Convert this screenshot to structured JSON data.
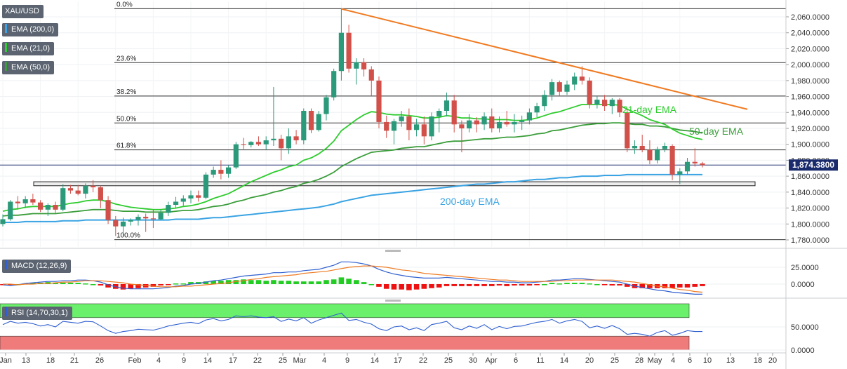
{
  "chart_data": {
    "type": "candlestick",
    "symbol": "XAU/USD",
    "ylim": [
      1775,
      2075
    ],
    "y_ticks": [
      1780,
      1800,
      1820,
      1840,
      1860,
      1880,
      1900,
      1920,
      1940,
      1960,
      1980,
      2000,
      2020,
      2040,
      2060
    ],
    "x_ticks": [
      "Jan",
      "13",
      "18",
      "21",
      "26",
      "Feb",
      "4",
      "9",
      "14",
      "17",
      "22",
      "25",
      "Mar",
      "4",
      "9",
      "14",
      "17",
      "22",
      "25",
      "30",
      "Apr",
      "6",
      "11",
      "14",
      "20",
      "25",
      "28",
      "May",
      "4",
      "6",
      "10",
      "13",
      "18",
      "20"
    ],
    "last_price": "1,874.3800",
    "fib_levels": [
      {
        "label": "0.0%",
        "value": 2070.2
      },
      {
        "label": "23.6%",
        "value": 2002.5
      },
      {
        "label": "38.2%",
        "value": 1960.6
      },
      {
        "label": "50.0%",
        "value": 1926.8
      },
      {
        "label": "61.8%",
        "value": 1893.0
      },
      {
        "label": "100.0%",
        "value": 1780.3
      }
    ],
    "indicators": [
      "EMA (200,0)",
      "EMA (21,0)",
      "EMA (50,0)"
    ],
    "annotations": [
      "21-day EMA",
      "50-day EMA",
      "200-day EMA"
    ],
    "ohlc": [
      [
        1800,
        1812,
        1797,
        1806
      ],
      [
        1806,
        1830,
        1804,
        1828
      ],
      [
        1828,
        1835,
        1819,
        1826
      ],
      [
        1826,
        1835,
        1820,
        1831
      ],
      [
        1831,
        1838,
        1824,
        1827
      ],
      [
        1827,
        1830,
        1815,
        1818
      ],
      [
        1818,
        1826,
        1810,
        1824
      ],
      [
        1824,
        1828,
        1814,
        1818
      ],
      [
        1818,
        1850,
        1816,
        1845
      ],
      [
        1845,
        1849,
        1838,
        1842
      ],
      [
        1842,
        1849,
        1836,
        1838
      ],
      [
        1838,
        1851,
        1832,
        1848
      ],
      [
        1848,
        1855,
        1840,
        1846
      ],
      [
        1846,
        1848,
        1820,
        1830
      ],
      [
        1830,
        1835,
        1800,
        1805
      ],
      [
        1805,
        1810,
        1785,
        1797
      ],
      [
        1797,
        1808,
        1785,
        1803
      ],
      [
        1803,
        1807,
        1798,
        1805
      ],
      [
        1805,
        1812,
        1798,
        1809
      ],
      [
        1809,
        1813,
        1790,
        1807
      ],
      [
        1807,
        1818,
        1795,
        1806
      ],
      [
        1806,
        1818,
        1805,
        1814
      ],
      [
        1814,
        1828,
        1810,
        1824
      ],
      [
        1824,
        1834,
        1820,
        1828
      ],
      [
        1828,
        1836,
        1823,
        1832
      ],
      [
        1832,
        1842,
        1826,
        1836
      ],
      [
        1836,
        1842,
        1828,
        1833
      ],
      [
        1833,
        1865,
        1831,
        1862
      ],
      [
        1862,
        1872,
        1858,
        1868
      ],
      [
        1868,
        1880,
        1856,
        1863
      ],
      [
        1863,
        1874,
        1858,
        1871
      ],
      [
        1871,
        1903,
        1869,
        1900
      ],
      [
        1900,
        1908,
        1894,
        1899
      ],
      [
        1899,
        1904,
        1896,
        1903
      ],
      [
        1903,
        1910,
        1898,
        1900
      ],
      [
        1900,
        1910,
        1893,
        1905
      ],
      [
        1905,
        1972,
        1898,
        1907
      ],
      [
        1907,
        1912,
        1880,
        1895
      ],
      [
        1895,
        1920,
        1888,
        1910
      ],
      [
        1910,
        1918,
        1900,
        1905
      ],
      [
        1905,
        1945,
        1900,
        1942
      ],
      [
        1942,
        1945,
        1914,
        1918
      ],
      [
        1918,
        1942,
        1916,
        1938
      ],
      [
        1938,
        1962,
        1930,
        1959
      ],
      [
        1959,
        1995,
        1955,
        1992
      ],
      [
        1992,
        2070,
        1980,
        2040
      ],
      [
        2040,
        2050,
        1990,
        1995
      ],
      [
        1995,
        2008,
        1975,
        2003
      ],
      [
        2003,
        2008,
        1985,
        1994
      ],
      [
        1994,
        1998,
        1960,
        1980
      ],
      [
        1980,
        1985,
        1920,
        1928
      ],
      [
        1928,
        1936,
        1908,
        1917
      ],
      [
        1917,
        1932,
        1900,
        1929
      ],
      [
        1929,
        1942,
        1922,
        1935
      ],
      [
        1935,
        1945,
        1905,
        1918
      ],
      [
        1918,
        1932,
        1910,
        1925
      ],
      [
        1925,
        1935,
        1900,
        1910
      ],
      [
        1910,
        1940,
        1905,
        1935
      ],
      [
        1935,
        1945,
        1915,
        1942
      ],
      [
        1942,
        1965,
        1935,
        1955
      ],
      [
        1955,
        1962,
        1915,
        1925
      ],
      [
        1925,
        1930,
        1890,
        1920
      ],
      [
        1920,
        1938,
        1915,
        1930
      ],
      [
        1930,
        1934,
        1915,
        1925
      ],
      [
        1925,
        1940,
        1918,
        1935
      ],
      [
        1935,
        1945,
        1915,
        1920
      ],
      [
        1920,
        1935,
        1915,
        1928
      ],
      [
        1928,
        1942,
        1922,
        1925
      ],
      [
        1925,
        1938,
        1915,
        1928
      ],
      [
        1928,
        1936,
        1918,
        1930
      ],
      [
        1930,
        1945,
        1925,
        1940
      ],
      [
        1940,
        1952,
        1934,
        1948
      ],
      [
        1948,
        1968,
        1942,
        1962
      ],
      [
        1962,
        1982,
        1955,
        1978
      ],
      [
        1978,
        1980,
        1960,
        1966
      ],
      [
        1966,
        1980,
        1962,
        1975
      ],
      [
        1975,
        1990,
        1968,
        1985
      ],
      [
        1985,
        1998,
        1975,
        1980
      ],
      [
        1980,
        1984,
        1945,
        1950
      ],
      [
        1950,
        1960,
        1945,
        1956
      ],
      [
        1956,
        1962,
        1942,
        1948
      ],
      [
        1948,
        1958,
        1938,
        1956
      ],
      [
        1956,
        1958,
        1934,
        1940
      ],
      [
        1940,
        1945,
        1890,
        1895
      ],
      [
        1895,
        1905,
        1888,
        1898
      ],
      [
        1898,
        1912,
        1890,
        1893
      ],
      [
        1893,
        1905,
        1875,
        1880
      ],
      [
        1880,
        1897,
        1876,
        1894
      ],
      [
        1894,
        1902,
        1890,
        1898
      ],
      [
        1898,
        1900,
        1855,
        1862
      ],
      [
        1862,
        1870,
        1850,
        1866
      ],
      [
        1866,
        1883,
        1862,
        1878
      ],
      [
        1878,
        1895,
        1872,
        1876
      ],
      [
        1876,
        1878,
        1871,
        1874
      ]
    ],
    "ema21": [
      1816,
      1818,
      1819,
      1821,
      1822,
      1822,
      1822,
      1822,
      1824,
      1826,
      1827,
      1829,
      1830,
      1830,
      1828,
      1825,
      1823,
      1821,
      1820,
      1819,
      1818,
      1818,
      1819,
      1820,
      1822,
      1823,
      1825,
      1828,
      1832,
      1835,
      1838,
      1843,
      1848,
      1853,
      1857,
      1861,
      1865,
      1868,
      1872,
      1874,
      1880,
      1883,
      1888,
      1895,
      1904,
      1917,
      1924,
      1931,
      1937,
      1941,
      1940,
      1938,
      1937,
      1937,
      1936,
      1935,
      1933,
      1933,
      1934,
      1936,
      1935,
      1933,
      1933,
      1932,
      1932,
      1931,
      1931,
      1931,
      1930,
      1930,
      1931,
      1933,
      1936,
      1939,
      1941,
      1944,
      1947,
      1950,
      1950,
      1950,
      1950,
      1950,
      1949,
      1944,
      1940,
      1936,
      1931,
      1928,
      1925,
      1919,
      1914,
      1911,
      1908,
      1906
    ],
    "ema50": [
      1810,
      1811,
      1811,
      1812,
      1813,
      1813,
      1813,
      1813,
      1814,
      1815,
      1816,
      1817,
      1818,
      1818,
      1818,
      1817,
      1816,
      1816,
      1816,
      1815,
      1815,
      1815,
      1815,
      1816,
      1817,
      1817,
      1818,
      1820,
      1822,
      1823,
      1825,
      1828,
      1830,
      1833,
      1835,
      1837,
      1840,
      1842,
      1845,
      1847,
      1851,
      1853,
      1856,
      1860,
      1865,
      1872,
      1877,
      1882,
      1886,
      1890,
      1891,
      1892,
      1893,
      1895,
      1896,
      1897,
      1897,
      1899,
      1901,
      1903,
      1904,
      1904,
      1905,
      1906,
      1907,
      1907,
      1908,
      1909,
      1909,
      1910,
      1911,
      1913,
      1914,
      1917,
      1918,
      1920,
      1922,
      1924,
      1925,
      1926,
      1926,
      1927,
      1927,
      1926,
      1925,
      1925,
      1923,
      1923,
      1922,
      1920,
      1918,
      1917,
      1916,
      1914
    ],
    "ema200": [
      1802,
      1802,
      1802,
      1803,
      1803,
      1803,
      1803,
      1803,
      1804,
      1804,
      1804,
      1805,
      1805,
      1805,
      1805,
      1805,
      1805,
      1805,
      1805,
      1805,
      1805,
      1805,
      1805,
      1806,
      1806,
      1806,
      1806,
      1807,
      1808,
      1808,
      1809,
      1810,
      1811,
      1812,
      1813,
      1814,
      1815,
      1816,
      1817,
      1818,
      1819,
      1820,
      1821,
      1823,
      1825,
      1828,
      1830,
      1832,
      1834,
      1836,
      1837,
      1838,
      1839,
      1840,
      1841,
      1842,
      1843,
      1844,
      1845,
      1846,
      1847,
      1848,
      1849,
      1850,
      1850,
      1851,
      1852,
      1853,
      1853,
      1854,
      1855,
      1856,
      1856,
      1857,
      1858,
      1858,
      1859,
      1860,
      1860,
      1860,
      1861,
      1861,
      1861,
      1862,
      1862,
      1862,
      1862,
      1862,
      1862,
      1862,
      1862,
      1862,
      1862,
      1862
    ],
    "macd": {
      "label": "MACD (12,26,9)",
      "ylim": [
        -18,
        33
      ],
      "y_ticks": [
        0,
        25
      ],
      "macd": [
        -1,
        -2,
        -1,
        1,
        2,
        3,
        4,
        4,
        5,
        5,
        6,
        6,
        5,
        3,
        -1,
        -4,
        -6,
        -7,
        -7,
        -7,
        -7,
        -6,
        -5,
        -3,
        -2,
        0,
        1,
        3,
        5,
        6,
        8,
        10,
        12,
        13,
        14,
        15,
        17,
        17,
        18,
        18,
        20,
        21,
        22,
        25,
        28,
        33,
        33,
        32,
        30,
        27,
        22,
        18,
        15,
        13,
        11,
        10,
        9,
        9,
        9,
        10,
        9,
        8,
        7,
        6,
        5,
        4,
        4,
        3,
        3,
        2,
        2,
        3,
        4,
        6,
        6,
        7,
        8,
        8,
        7,
        6,
        5,
        4,
        3,
        0,
        -3,
        -5,
        -7,
        -9,
        -10,
        -12,
        -13,
        -14,
        -15,
        -15
      ],
      "signal": [
        0,
        0,
        -1,
        0,
        0,
        1,
        1,
        2,
        3,
        3,
        4,
        5,
        5,
        5,
        4,
        3,
        2,
        0,
        -1,
        -2,
        -3,
        -4,
        -4,
        -4,
        -3,
        -3,
        -2,
        -1,
        0,
        1,
        2,
        4,
        5,
        7,
        8,
        10,
        11,
        12,
        13,
        14,
        16,
        17,
        18,
        19,
        21,
        23,
        25,
        26,
        27,
        27,
        26,
        25,
        23,
        21,
        20,
        18,
        16,
        15,
        14,
        13,
        12,
        11,
        10,
        9,
        8,
        7,
        6,
        6,
        5,
        4,
        4,
        4,
        4,
        4,
        5,
        5,
        6,
        6,
        6,
        6,
        6,
        6,
        5,
        4,
        3,
        1,
        -1,
        -3,
        -4,
        -6,
        -8,
        -9,
        -11,
        -12
      ]
    },
    "rsi": {
      "label": "RSI (14,70,30,1)",
      "ylim": [
        -5,
        105
      ],
      "y_ticks": [
        0,
        50
      ],
      "overbought": 70,
      "oversold": 30,
      "values": [
        55,
        62,
        58,
        60,
        57,
        52,
        55,
        50,
        62,
        60,
        58,
        62,
        61,
        52,
        42,
        36,
        40,
        42,
        45,
        44,
        43,
        47,
        52,
        55,
        58,
        60,
        57,
        65,
        68,
        63,
        66,
        74,
        72,
        74,
        71,
        70,
        72,
        62,
        67,
        63,
        70,
        58,
        65,
        70,
        75,
        80,
        64,
        66,
        60,
        56,
        46,
        42,
        50,
        52,
        44,
        48,
        42,
        55,
        58,
        62,
        48,
        44,
        52,
        47,
        55,
        44,
        51,
        46,
        51,
        52,
        56,
        60,
        62,
        66,
        58,
        63,
        66,
        62,
        48,
        52,
        47,
        53,
        46,
        34,
        36,
        34,
        30,
        38,
        42,
        32,
        36,
        42,
        40,
        40
      ]
    }
  }
}
